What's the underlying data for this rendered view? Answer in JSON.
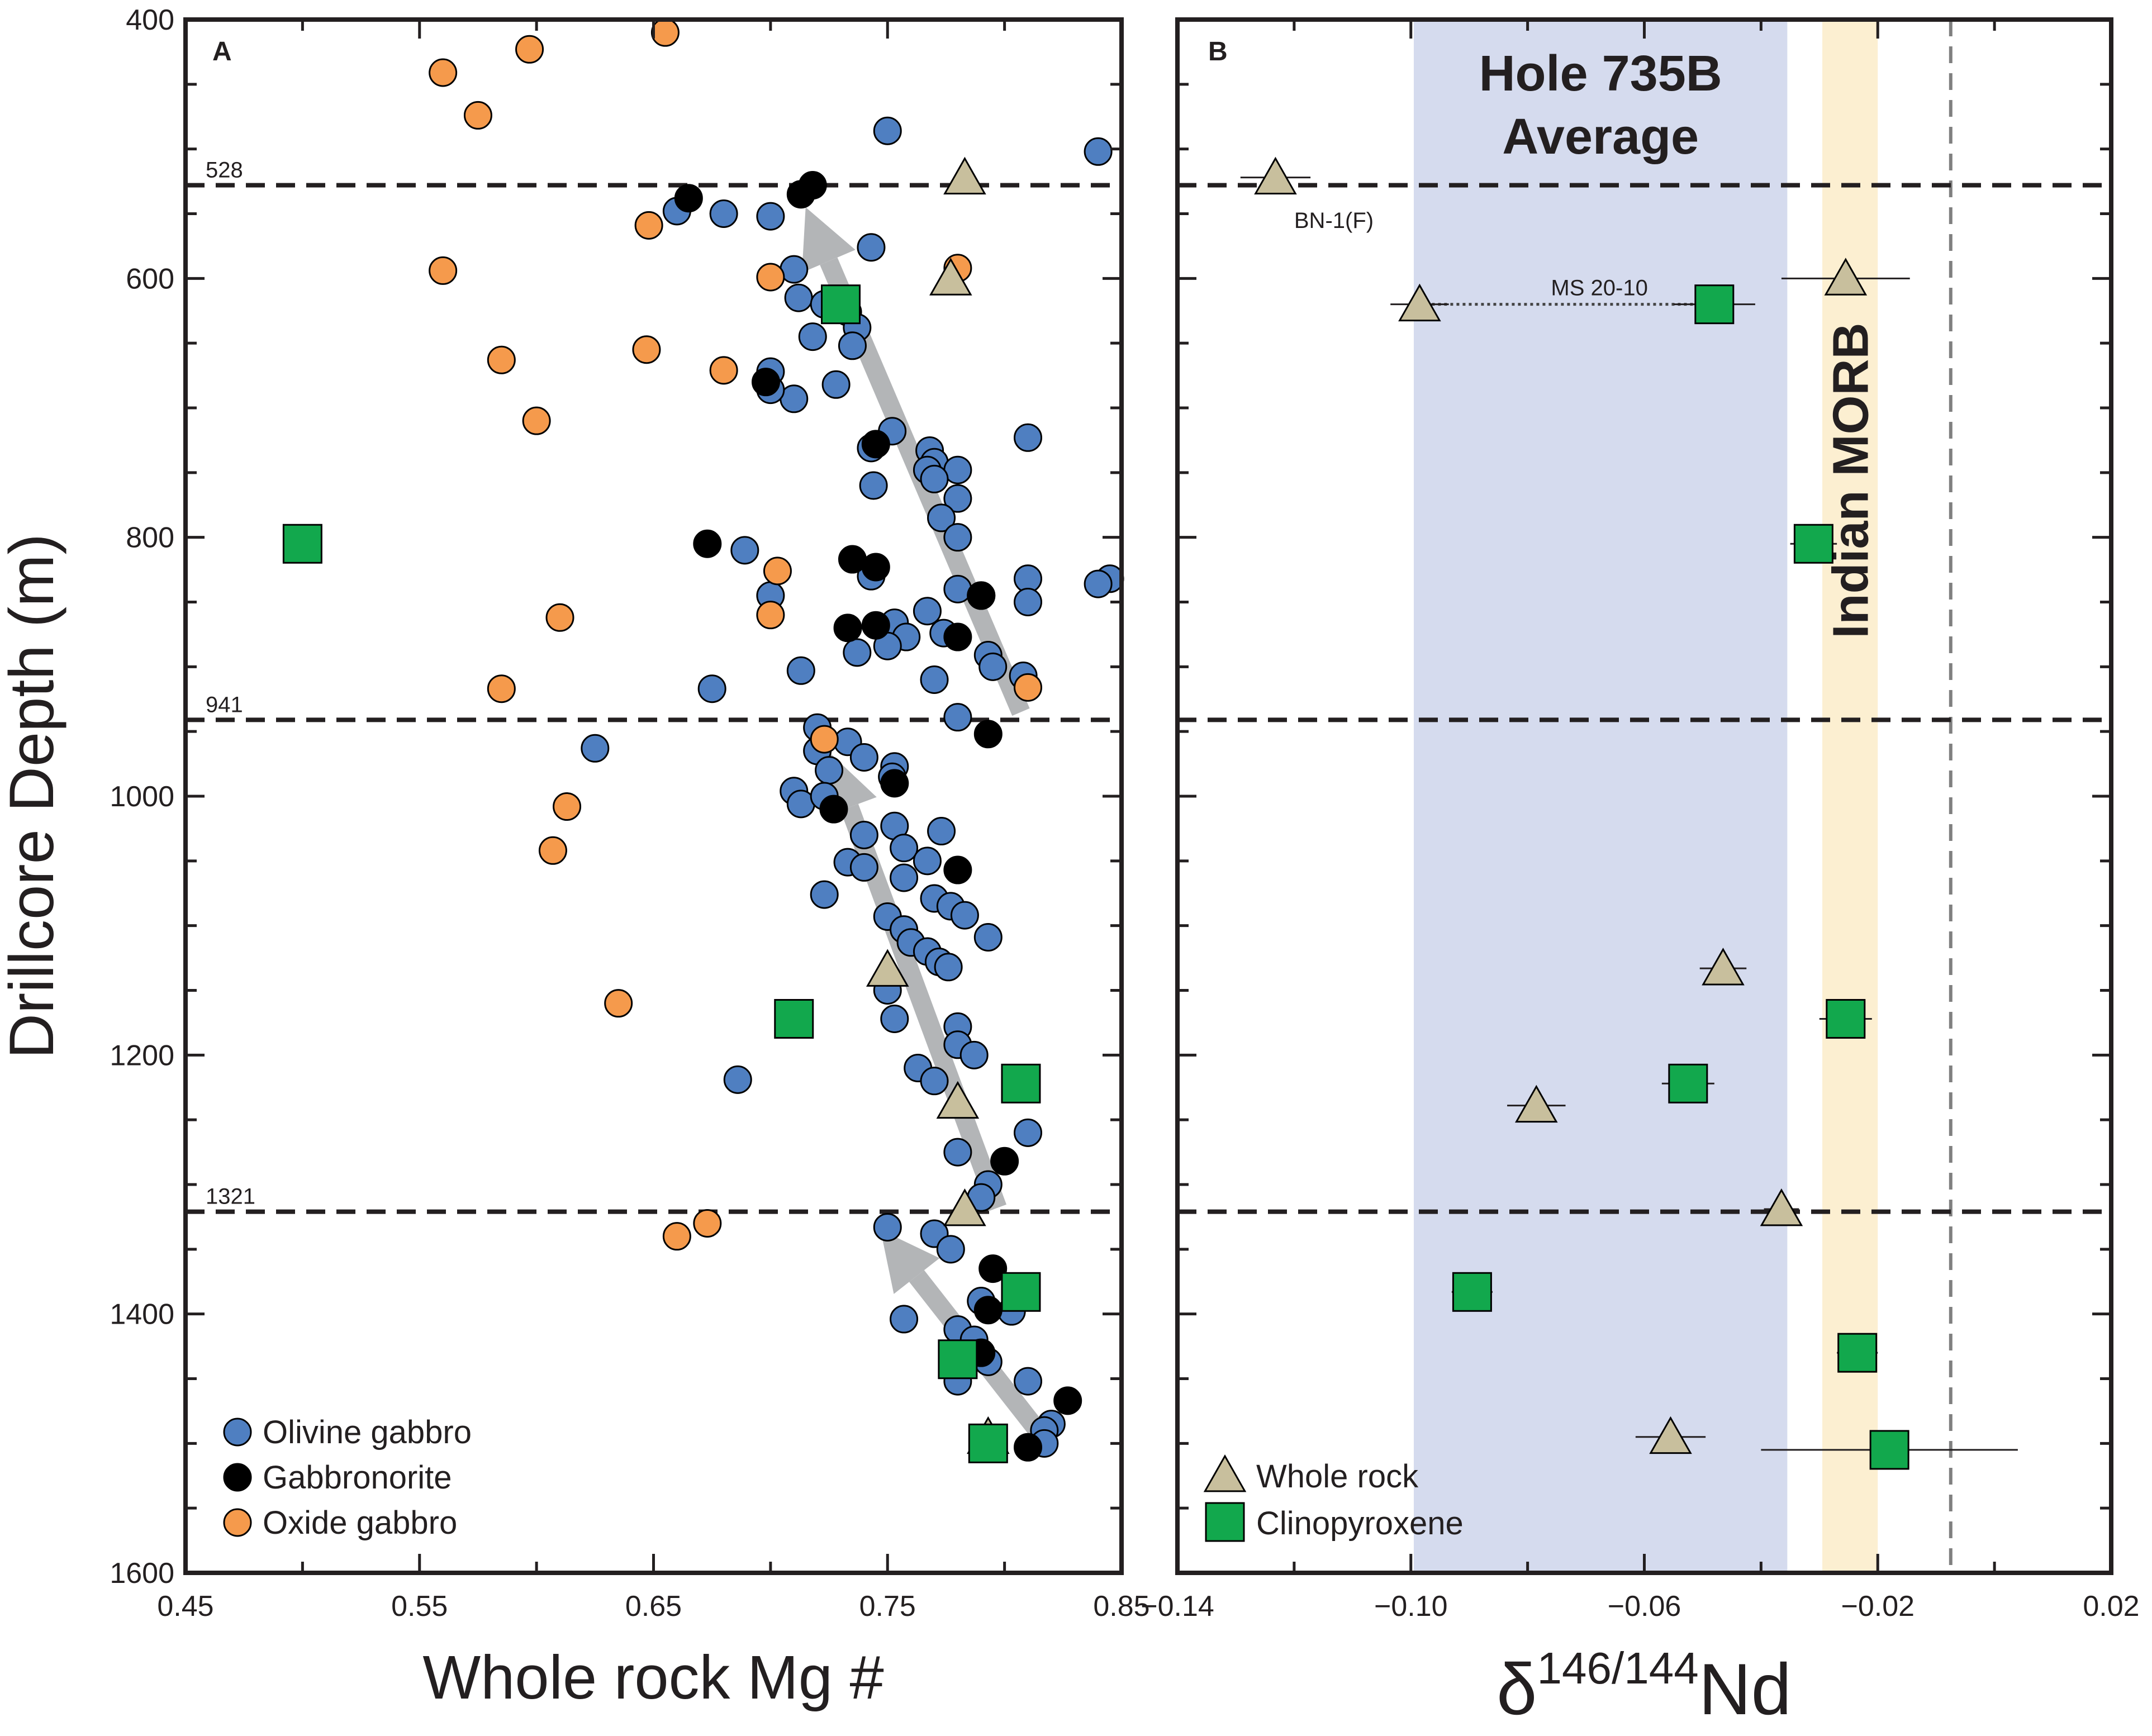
{
  "chart_data": [
    {
      "panel": "A",
      "type": "scatter",
      "xlabel": "Whole rock Mg #",
      "ylabel": "Drillcore Depth (m)",
      "xlim": [
        0.45,
        0.85
      ],
      "ylim": [
        1600,
        400
      ],
      "x_ticks": [
        "0.45",
        "0.55",
        "0.65",
        "0.75",
        "0.85"
      ],
      "y_ticks": [
        "400",
        "600",
        "800",
        "1000",
        "1200",
        "1400",
        "1600"
      ],
      "depth_lines": [
        {
          "depth": 528,
          "label": "528"
        },
        {
          "depth": 941,
          "label": "941"
        },
        {
          "depth": 1321,
          "label": "1321"
        }
      ],
      "legend": [
        "Olivine gabbro",
        "Gabbronorite",
        "Oxide gabbro"
      ],
      "colors": {
        "olivine": "#4f7fc1",
        "gabbronorite": "#000000",
        "oxide": "#f59a4c",
        "whole_rock": "#c8bf9d",
        "cpx": "#12a84d",
        "arrow": "#b3b5b7"
      },
      "series": [
        {
          "name": "Olivine gabbro",
          "points": [
            [
              0.75,
              486
            ],
            [
              0.84,
              502
            ],
            [
              0.66,
              548
            ],
            [
              0.68,
              550
            ],
            [
              0.7,
              552
            ],
            [
              0.743,
              576
            ],
            [
              0.71,
              593
            ],
            [
              0.712,
              615
            ],
            [
              0.723,
              620
            ],
            [
              0.733,
              626
            ],
            [
              0.737,
              638
            ],
            [
              0.718,
              645
            ],
            [
              0.735,
              652
            ],
            [
              0.728,
              682
            ],
            [
              0.71,
              693
            ],
            [
              0.7,
              672
            ],
            [
              0.7,
              686
            ],
            [
              0.752,
              718
            ],
            [
              0.743,
              731
            ],
            [
              0.768,
              733
            ],
            [
              0.77,
              742
            ],
            [
              0.767,
              748
            ],
            [
              0.78,
              748
            ],
            [
              0.77,
              755
            ],
            [
              0.744,
              760
            ],
            [
              0.78,
              770
            ],
            [
              0.773,
              785
            ],
            [
              0.78,
              800
            ],
            [
              0.81,
              723
            ],
            [
              0.689,
              810
            ],
            [
              0.743,
              830
            ],
            [
              0.7,
              845
            ],
            [
              0.78,
              840
            ],
            [
              0.79,
              845
            ],
            [
              0.81,
              832
            ],
            [
              0.81,
              850
            ],
            [
              0.845,
              832
            ],
            [
              0.84,
              836
            ],
            [
              0.767,
              857
            ],
            [
              0.753,
              866
            ],
            [
              0.774,
              874
            ],
            [
              0.758,
              877
            ],
            [
              0.75,
              884
            ],
            [
              0.737,
              889
            ],
            [
              0.793,
              891
            ],
            [
              0.795,
              900
            ],
            [
              0.808,
              907
            ],
            [
              0.77,
              910
            ],
            [
              0.713,
              903
            ],
            [
              0.675,
              917
            ],
            [
              0.78,
              939
            ],
            [
              0.625,
              963
            ],
            [
              0.72,
              947
            ],
            [
              0.733,
              958
            ],
            [
              0.72,
              965
            ],
            [
              0.725,
              980
            ],
            [
              0.74,
              970
            ],
            [
              0.753,
              977
            ],
            [
              0.752,
              985
            ],
            [
              0.71,
              996
            ],
            [
              0.713,
              1006
            ],
            [
              0.723,
              1000
            ],
            [
              0.753,
              1023
            ],
            [
              0.773,
              1027
            ],
            [
              0.74,
              1030
            ],
            [
              0.757,
              1040
            ],
            [
              0.767,
              1050
            ],
            [
              0.733,
              1051
            ],
            [
              0.74,
              1055
            ],
            [
              0.757,
              1063
            ],
            [
              0.723,
              1076
            ],
            [
              0.77,
              1079
            ],
            [
              0.777,
              1085
            ],
            [
              0.783,
              1092
            ],
            [
              0.75,
              1093
            ],
            [
              0.757,
              1103
            ],
            [
              0.76,
              1113
            ],
            [
              0.793,
              1109
            ],
            [
              0.767,
              1120
            ],
            [
              0.772,
              1128
            ],
            [
              0.776,
              1132
            ],
            [
              0.75,
              1150
            ],
            [
              0.753,
              1172
            ],
            [
              0.78,
              1178
            ],
            [
              0.78,
              1192
            ],
            [
              0.787,
              1200
            ],
            [
              0.763,
              1210
            ],
            [
              0.77,
              1220
            ],
            [
              0.686,
              1219
            ],
            [
              0.81,
              1260
            ],
            [
              0.78,
              1275
            ],
            [
              0.793,
              1300
            ],
            [
              0.79,
              1310
            ],
            [
              0.75,
              1333
            ],
            [
              0.77,
              1338
            ],
            [
              0.777,
              1350
            ],
            [
              0.757,
              1404
            ],
            [
              0.79,
              1390
            ],
            [
              0.803,
              1398
            ],
            [
              0.78,
              1412
            ],
            [
              0.787,
              1420
            ],
            [
              0.793,
              1437
            ],
            [
              0.78,
              1452
            ],
            [
              0.81,
              1452
            ],
            [
              0.82,
              1485
            ],
            [
              0.817,
              1490
            ],
            [
              0.817,
              1500
            ]
          ]
        },
        {
          "name": "Gabbronorite",
          "points": [
            [
              0.665,
              538
            ],
            [
              0.718,
              528
            ],
            [
              0.713,
              535
            ],
            [
              0.745,
              728
            ],
            [
              0.698,
              680
            ],
            [
              0.673,
              805
            ],
            [
              0.735,
              817
            ],
            [
              0.745,
              823
            ],
            [
              0.745,
              868
            ],
            [
              0.733,
              870
            ],
            [
              0.78,
              877
            ],
            [
              0.79,
              845
            ],
            [
              0.793,
              952
            ],
            [
              0.753,
              990
            ],
            [
              0.727,
              1010
            ],
            [
              0.78,
              1057
            ],
            [
              0.8,
              1282
            ],
            [
              0.795,
              1365
            ],
            [
              0.793,
              1397
            ],
            [
              0.79,
              1430
            ],
            [
              0.827,
              1467
            ],
            [
              0.81,
              1503
            ]
          ]
        },
        {
          "name": "Oxide gabbro",
          "points": [
            [
              0.655,
              410
            ],
            [
              0.597,
              423
            ],
            [
              0.56,
              441
            ],
            [
              0.575,
              474
            ],
            [
              0.648,
              559
            ],
            [
              0.56,
              594
            ],
            [
              0.7,
              599
            ],
            [
              0.78,
              592
            ],
            [
              0.585,
              663
            ],
            [
              0.647,
              655
            ],
            [
              0.68,
              671
            ],
            [
              0.6,
              710
            ],
            [
              0.703,
              826
            ],
            [
              0.61,
              862
            ],
            [
              0.7,
              860
            ],
            [
              0.585,
              917
            ],
            [
              0.81,
              916
            ],
            [
              0.723,
              956
            ],
            [
              0.613,
              1008
            ],
            [
              0.607,
              1042
            ],
            [
              0.635,
              1160
            ],
            [
              0.673,
              1330
            ],
            [
              0.66,
              1340
            ]
          ]
        },
        {
          "name": "Whole rock",
          "points": [
            [
              0.783,
              522
            ],
            [
              0.777,
              600
            ],
            [
              0.75,
              1134
            ],
            [
              0.78,
              1236
            ],
            [
              0.783,
              1319
            ],
            [
              0.793,
              1495
            ]
          ]
        },
        {
          "name": "Clinopyroxene",
          "points": [
            [
              0.5,
              805
            ],
            [
              0.73,
              620
            ],
            [
              0.71,
              1172
            ],
            [
              0.807,
              1222
            ],
            [
              0.807,
              1383
            ],
            [
              0.78,
              1435
            ],
            [
              0.793,
              1500
            ]
          ]
        }
      ],
      "trend_arrows": [
        {
          "from": [
            0.807,
            935
          ],
          "to": [
            0.715,
            545
          ]
        },
        {
          "from": [
            0.797,
            1318
          ],
          "to": [
            0.725,
            966
          ]
        },
        {
          "from": [
            0.815,
            1492
          ],
          "to": [
            0.747,
            1335
          ]
        }
      ]
    },
    {
      "panel": "B",
      "type": "scatter",
      "xlabel_main": "δ",
      "xlabel_sup": "146/144",
      "xlabel_end": "Nd",
      "xlim": [
        -0.14,
        0.02
      ],
      "ylim": [
        1600,
        400
      ],
      "x_ticks": [
        "−0.14",
        "−0.10",
        "−0.06",
        "−0.02",
        "0.02"
      ],
      "depth_lines": [
        528,
        941,
        1321
      ],
      "band_hole": {
        "label_line1": "Hole 735B",
        "label_line2": "Average",
        "range": [
          -0.0995,
          -0.0355
        ]
      },
      "band_morb": {
        "label": "Indian MORB",
        "range": [
          -0.0295,
          -0.02
        ]
      },
      "ref_line": -0.0075,
      "legend": [
        "Whole rock",
        "Clinopyroxene"
      ],
      "series": [
        {
          "name": "Whole rock",
          "points": [
            [
              -0.1232,
              522,
              0.006
            ],
            [
              -0.0985,
              620,
              0.005
            ],
            [
              -0.0255,
              600,
              0.011
            ],
            [
              -0.0465,
              1133,
              0.004
            ],
            [
              -0.0785,
              1239,
              0.005
            ],
            [
              -0.0365,
              1319,
              0.003
            ],
            [
              -0.0555,
              1495,
              0.006
            ]
          ]
        },
        {
          "name": "Clinopyroxene",
          "points": [
            [
              -0.048,
              620,
              0.007
            ],
            [
              -0.031,
              805,
              0.004
            ],
            [
              -0.0255,
              1172,
              0.0045
            ],
            [
              -0.0525,
              1222,
              0.0045
            ],
            [
              -0.0895,
              1383,
              0.0035
            ],
            [
              -0.0235,
              1430,
              0.0035
            ],
            [
              -0.018,
              1505,
              0.022
            ]
          ]
        }
      ],
      "annotations": [
        {
          "text": "BN-1(F)",
          "x": -0.12,
          "y": 555
        },
        {
          "text": "MS 20-10",
          "x": -0.076,
          "y": 607
        }
      ]
    }
  ]
}
